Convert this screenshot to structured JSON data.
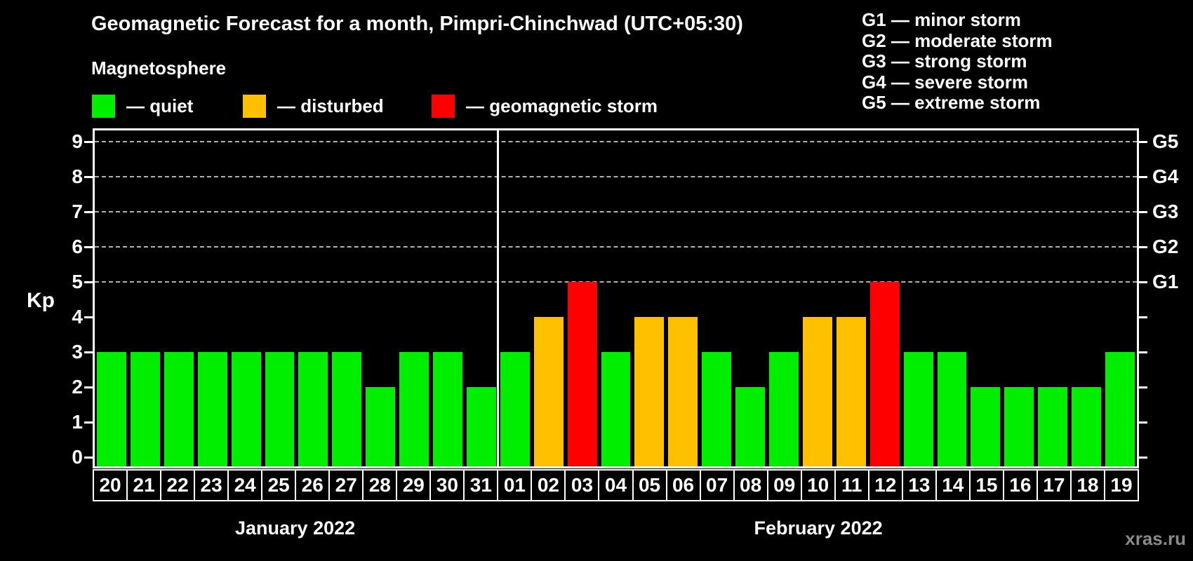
{
  "title": "Geomagnetic Forecast for a month, Pimpri-Chinchwad (UTC+05:30)",
  "subtitle": "Magnetosphere",
  "legend": {
    "quiet": "— quiet",
    "disturbed": "— disturbed",
    "storm": "— geomagnetic storm"
  },
  "legend_g": {
    "items": [
      "G1 — minor storm",
      "G2 — moderate storm",
      "G3 — strong storm",
      "G4 — severe storm",
      "G5 — extreme storm"
    ]
  },
  "axes": {
    "y_label": "Kp",
    "y_ticks": [
      0,
      1,
      2,
      3,
      4,
      5,
      6,
      7,
      8,
      9
    ],
    "right_labels": [
      {
        "value": 5,
        "label": "G1"
      },
      {
        "value": 6,
        "label": "G2"
      },
      {
        "value": 7,
        "label": "G3"
      },
      {
        "value": 8,
        "label": "G4"
      },
      {
        "value": 9,
        "label": "G5"
      }
    ],
    "gridlines_at": [
      5,
      6,
      7,
      8,
      9
    ]
  },
  "months": [
    {
      "label": "January 2022",
      "days": 12
    },
    {
      "label": "February 2022",
      "days": 19
    }
  ],
  "watermark": "xras.ru",
  "colors": {
    "quiet": "#00ee00",
    "disturbed": "#ffc000",
    "storm": "#ff0000",
    "background": "#000000",
    "axis": "#ffffff",
    "grid": "#b0b0b0",
    "watermark": "#8a8a8a"
  },
  "chart_data": {
    "type": "bar",
    "title": "Geomagnetic Forecast for a month, Pimpri-Chinchwad (UTC+05:30)",
    "xlabel": "",
    "ylabel": "Kp",
    "ylim": [
      0,
      9
    ],
    "grid": "horizontal dashed lines at Kp 5,6,7,8,9 (G1–G5 levels)",
    "legend_position": "top-left (quiet/disturbed/storm), top-right (G1–G5 scale)",
    "categories": [
      "20",
      "21",
      "22",
      "23",
      "24",
      "25",
      "26",
      "27",
      "28",
      "29",
      "30",
      "31",
      "01",
      "02",
      "03",
      "04",
      "05",
      "06",
      "07",
      "08",
      "09",
      "10",
      "11",
      "12",
      "13",
      "14",
      "15",
      "16",
      "17",
      "18",
      "19"
    ],
    "values": [
      3,
      3,
      3,
      3,
      3,
      3,
      3,
      3,
      2,
      3,
      3,
      2,
      3,
      4,
      5,
      3,
      4,
      4,
      3,
      2,
      3,
      4,
      4,
      5,
      3,
      3,
      2,
      2,
      2,
      2,
      3
    ],
    "thresholds": {
      "disturbed_min": 4,
      "storm_min": 5
    },
    "series_color_rule": "Kp<=3 quiet green, Kp=4 disturbed orange, Kp>=5 storm red"
  }
}
